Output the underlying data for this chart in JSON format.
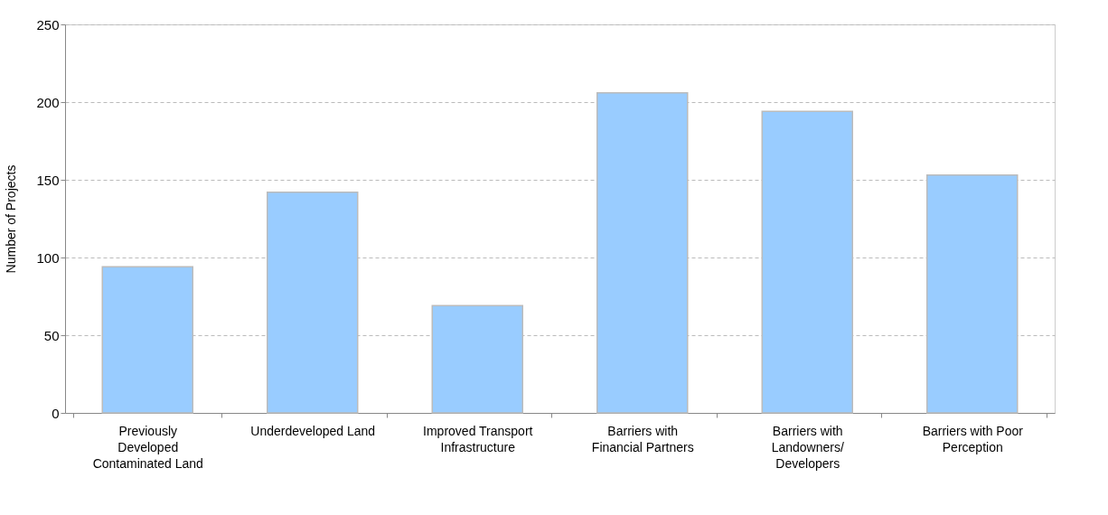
{
  "chart_data": {
    "type": "bar",
    "ylabel": "Number of Projects",
    "categories": [
      "Previously Developed Contaminated Land",
      "Underdeveloped Land",
      "Improved Transport Infrastructure",
      "Barriers with Financial Partners",
      "Barriers with Landowners/ Developers",
      "Barriers with Poor Perception"
    ],
    "values": [
      94,
      142,
      69,
      206,
      194,
      153
    ],
    "color": "#99ccff",
    "ylim": [
      0,
      250
    ],
    "yticks": [
      0,
      50,
      100,
      150,
      200,
      250
    ],
    "grid": "y"
  }
}
